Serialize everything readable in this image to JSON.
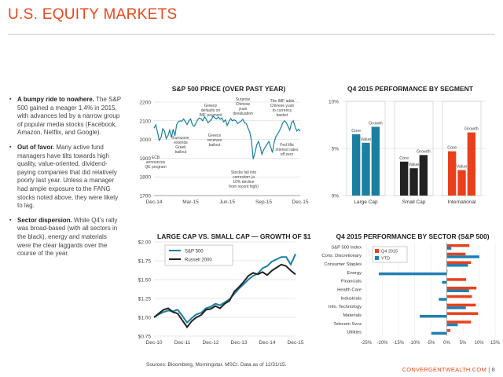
{
  "page": {
    "title": "U.S. EQUITY MARKETS",
    "footnote": "Sources: Bloomberg, Morningstar, MSCI. Data as of 12/31/15.",
    "brand": "CONVERGENTWEALTH.COM",
    "page_number": "| 8"
  },
  "bullets": [
    {
      "head": "A bumpy ride to nowhere.",
      "body": " The S&P 500 gained a meager 1.4% in 2015, with advances led by a narrow group of popular media stocks (Facebook, Amazon, Netflix, and Google)."
    },
    {
      "head": "Out of favor.",
      "body": " Many active fund managers have tilts towards high quality, value-oriented, dividend-paying companies that did relatively poorly last year. Unless a manager had ample exposure to the FANG stocks noted above, they were likely to lag."
    },
    {
      "head": "Sector dispersion.",
      "body": " While Q4's rally was broad-based (with all sectors in the black), energy and materials were the clear laggards over the course of the year."
    }
  ],
  "colors": {
    "accent": "#e8491d",
    "teal": "#1a7fa0",
    "red": "#e8401c",
    "blue": "#1e7fb5",
    "dark": "#222222",
    "grid": "#d0d0d0"
  },
  "chart_data": [
    {
      "type": "line",
      "title": "S&P 500 PRICE (OVER PAST YEAR)",
      "x_ticks": [
        "Dec-14",
        "Mar-15",
        "Jun-15",
        "Sep-15",
        "Dec-15"
      ],
      "ylim": [
        1700,
        2200
      ],
      "y_ticks": [
        1700,
        1800,
        1900,
        2000,
        2100,
        2200
      ],
      "series": [
        {
          "x": [
            0,
            3,
            6,
            9,
            12,
            15,
            18,
            21,
            24,
            27,
            30,
            33,
            36,
            39,
            42,
            45,
            48,
            51,
            54,
            57,
            60,
            63,
            66,
            69,
            72,
            75,
            78,
            81,
            84,
            87,
            90,
            93,
            96,
            99,
            102,
            105,
            108,
            111,
            114,
            117,
            120,
            123,
            126,
            129,
            132,
            135,
            138,
            141,
            144,
            147,
            150,
            153,
            156,
            159,
            162,
            165,
            168,
            171,
            174,
            177,
            180,
            183,
            186,
            189,
            192,
            195,
            198,
            201,
            204,
            207,
            210,
            213,
            216,
            219,
            222,
            225,
            228,
            231,
            234,
            237,
            240,
            243,
            246,
            249,
            252
          ],
          "values": [
            2060,
            2078,
            2040,
            1995,
            2010,
            2058,
            2046,
            2005,
            2020,
            2050,
            2010,
            2055,
            2020,
            2080,
            2095,
            2100,
            2098,
            2110,
            2095,
            2080,
            2100,
            2110,
            2080,
            2070,
            2085,
            2105,
            2115,
            2110,
            2100,
            2122,
            2108,
            2090,
            2098,
            2108,
            2125,
            2115,
            2110,
            2120,
            2108,
            2115,
            2095,
            2105,
            2075,
            2095,
            2112,
            2100,
            2105,
            2100,
            2085,
            2092,
            2098,
            2108,
            2090,
            2085,
            2060,
            2040,
            1990,
            1895,
            1930,
            1970,
            1990,
            1960,
            1920,
            1945,
            1960,
            1975,
            1990,
            1960,
            1930,
            1985,
            2015,
            2030,
            2045,
            2065,
            2090,
            2100,
            2090,
            2070,
            2050,
            2090,
            2100,
            2070,
            2045,
            2055,
            2044
          ]
        }
      ],
      "annotations": [
        "Greece defaults on IMF payment",
        "Surprise Chinese yuan devaluation",
        "The IMF adds Chinese yuan to currency basket",
        "Eurozone extends Greek bailout",
        "Greece receives bailout",
        "Fed lifts interest rates off zero",
        "ECB announces QE program",
        "Stocks fall into correction (a 10% decline from recent high)"
      ]
    },
    {
      "type": "bar",
      "title": "Q4 2015 PERFORMANCE BY SEGMENT",
      "ylim": [
        0,
        10
      ],
      "y_ticks": [
        "0%",
        "5%",
        "10%"
      ],
      "groups": [
        {
          "name": "Large Cap",
          "bars": [
            {
              "label": "Core",
              "value": 6.5
            },
            {
              "label": "Value",
              "value": 5.6
            },
            {
              "label": "Growth",
              "value": 7.3
            }
          ]
        },
        {
          "name": "Small Cap",
          "bars": [
            {
              "label": "Core",
              "value": 3.6
            },
            {
              "label": "Value",
              "value": 2.9
            },
            {
              "label": "Growth",
              "value": 4.3
            }
          ]
        },
        {
          "name": "International",
          "bars": [
            {
              "label": "Core",
              "value": 4.7
            },
            {
              "label": "Value",
              "value": 2.7
            },
            {
              "label": "Growth",
              "value": 6.7
            }
          ]
        }
      ]
    },
    {
      "type": "line",
      "title": "LARGE CAP VS. SMALL CAP — GROWTH OF $1",
      "x_ticks": [
        "Dec-10",
        "Dec-11",
        "Dec-12",
        "Dec-13",
        "Dec-14",
        "Dec-15"
      ],
      "ylim": [
        0.75,
        2.0
      ],
      "y_ticks": [
        "$0.75",
        "$1.00",
        "$1.25",
        "$1.50",
        "$1.75",
        "$2.00"
      ],
      "series": [
        {
          "name": "S&P 500",
          "x": [
            0,
            2,
            4,
            6,
            8,
            10,
            12,
            14,
            16,
            18,
            20,
            22,
            24,
            26,
            28,
            30,
            32,
            34,
            36,
            38,
            40,
            42,
            44,
            46,
            48,
            50,
            52,
            54,
            56,
            58,
            60
          ],
          "values": [
            1.0,
            1.04,
            1.07,
            1.09,
            1.08,
            1.1,
            1.02,
            0.93,
            0.99,
            1.04,
            1.06,
            1.12,
            1.14,
            1.18,
            1.16,
            1.2,
            1.24,
            1.31,
            1.38,
            1.44,
            1.5,
            1.55,
            1.58,
            1.65,
            1.68,
            1.74,
            1.77,
            1.8,
            1.8,
            1.7,
            1.84
          ]
        },
        {
          "name": "Russell 2000",
          "x": [
            0,
            2,
            4,
            6,
            8,
            10,
            12,
            14,
            16,
            18,
            20,
            22,
            24,
            26,
            28,
            30,
            32,
            34,
            36,
            38,
            40,
            42,
            44,
            46,
            48,
            50,
            52,
            54,
            56,
            58,
            60
          ],
          "values": [
            1.0,
            1.05,
            1.1,
            1.12,
            1.07,
            1.05,
            0.96,
            0.87,
            0.95,
            1.0,
            1.03,
            1.1,
            1.11,
            1.15,
            1.12,
            1.18,
            1.22,
            1.34,
            1.4,
            1.47,
            1.55,
            1.59,
            1.57,
            1.6,
            1.56,
            1.62,
            1.66,
            1.7,
            1.68,
            1.62,
            1.57
          ]
        }
      ]
    },
    {
      "type": "bar",
      "orientation": "horizontal",
      "title": "Q4 2015 PERFORMANCE BY SECTOR (S&P 500)",
      "xlim": [
        -25,
        15
      ],
      "x_ticks": [
        "-25%",
        "-20%",
        "-15%",
        "-10%",
        "-5%",
        "0%",
        "5%",
        "10%",
        "15%"
      ],
      "categories": [
        "S&P 500 Index",
        "Cons. Discretionary",
        "Consumer Staples",
        "Energy",
        "Financials",
        "Health Care",
        "Industrials",
        "Info. Technology",
        "Materials",
        "Telecom Svcs",
        "Utilities"
      ],
      "series": [
        {
          "name": "Q4 2015",
          "values": [
            7.0,
            5.8,
            7.5,
            0.2,
            6.0,
            9.2,
            7.8,
            9.0,
            9.7,
            7.5,
            1.1
          ]
        },
        {
          "name": "YTD",
          "values": [
            1.4,
            10.1,
            6.6,
            -21.1,
            -1.5,
            6.9,
            -2.5,
            5.9,
            -8.4,
            3.4,
            -4.8
          ]
        }
      ]
    }
  ]
}
